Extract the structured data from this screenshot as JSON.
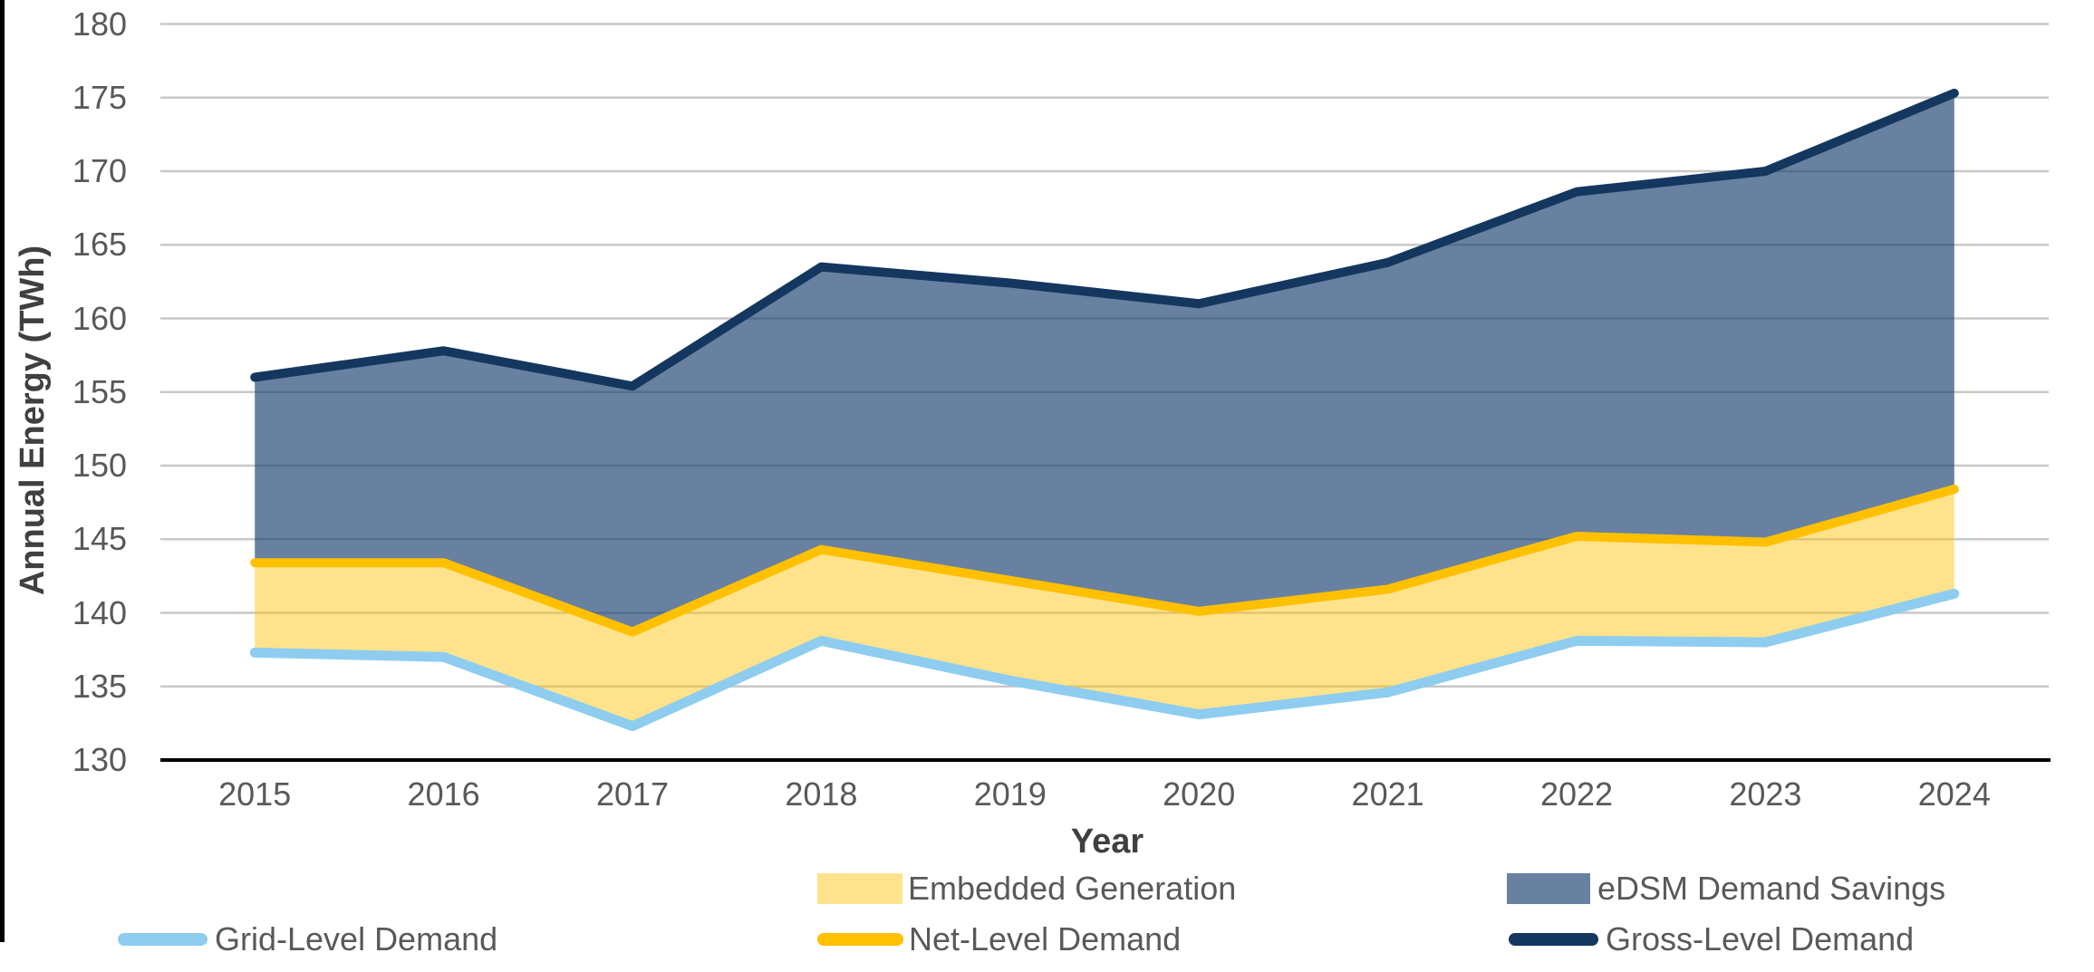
{
  "page": {
    "background_color": "#FFFFFF",
    "left_edge_frame_color": "#000000"
  },
  "axes": {
    "x_title": "Year",
    "y_title": "Annual Energy (TWh)",
    "tick_text_color": "#595959",
    "title_text_color": "#404040",
    "gridline_color": "#C8C8C8",
    "axis_line_color": "#000000"
  },
  "chart_data": {
    "type": "area",
    "title": "",
    "xlabel": "Year",
    "ylabel": "Annual Energy (TWh)",
    "x_labels": [
      "2015",
      "2016",
      "2017",
      "2018",
      "2019",
      "2020",
      "2021",
      "2022",
      "2023",
      "2024"
    ],
    "ylim": [
      130,
      180
    ],
    "ytick_step": 5,
    "ytick_labels": [
      "130",
      "135",
      "140",
      "145",
      "150",
      "155",
      "160",
      "165",
      "170",
      "175",
      "180"
    ],
    "grid": "horizontal",
    "legend_position": "bottom",
    "series": [
      {
        "name": "Grid-Level Demand",
        "kind": "line",
        "color": "#8ECDEF",
        "stroke_width": 11,
        "values": [
          137.3,
          137.0,
          132.3,
          138.1,
          135.4,
          133.1,
          134.6,
          138.1,
          138.0,
          141.3
        ]
      },
      {
        "name": "Net-Level Demand",
        "kind": "line",
        "color": "#FFC000",
        "stroke_width": 10,
        "values": [
          143.4,
          143.4,
          138.7,
          144.3,
          142.2,
          140.1,
          141.6,
          145.2,
          144.8,
          148.4
        ]
      },
      {
        "name": "Gross-Level Demand",
        "kind": "line",
        "color": "#14375F",
        "stroke_width": 10,
        "values": [
          156.0,
          157.8,
          155.4,
          163.5,
          162.4,
          161.0,
          163.8,
          168.6,
          170.0,
          175.3
        ]
      },
      {
        "name": "Embedded Generation",
        "kind": "band",
        "between": [
          "Grid-Level Demand",
          "Net-Level Demand"
        ],
        "color": "#FFC000",
        "opacity": 0.45
      },
      {
        "name": "eDSM Demand Savings",
        "kind": "band",
        "between": [
          "Net-Level Demand",
          "Gross-Level Demand"
        ],
        "color": "#1A4071",
        "opacity": 0.66
      }
    ]
  },
  "legend": {
    "text_color": "#595959",
    "items": [
      {
        "label": "Embedded Generation",
        "swatch": "area",
        "css_color": "rgba(255,192,0,0.45)"
      },
      {
        "label": "eDSM Demand Savings",
        "swatch": "area",
        "css_color": "rgba(26,64,113,0.66)"
      },
      {
        "label": "Grid-Level Demand",
        "swatch": "line",
        "css_color": "#8ECDEF"
      },
      {
        "label": "Net-Level Demand",
        "swatch": "line",
        "css_color": "#FFC000"
      },
      {
        "label": "Gross-Level Demand",
        "swatch": "line",
        "css_color": "#14375F"
      }
    ]
  }
}
